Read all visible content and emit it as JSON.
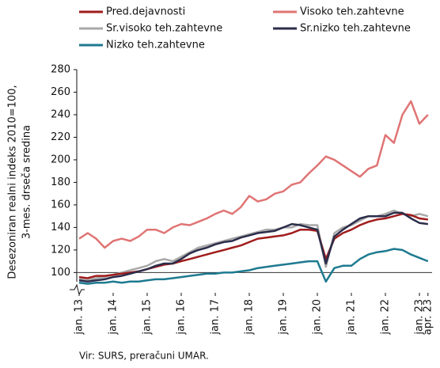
{
  "chart_data": {
    "type": "line",
    "y_label": [
      "Desezoniran realni indeks 2010=100,",
      "3-mes. drseča sredina"
    ],
    "source": "Vir: SURS, preračuni UMAR.",
    "categories": [
      "jan. 13",
      null,
      null,
      null,
      "jan. 14",
      null,
      null,
      null,
      "jan. 15",
      null,
      null,
      null,
      "jan. 16",
      null,
      null,
      null,
      "jan. 17",
      null,
      null,
      null,
      "jan. 18",
      null,
      null,
      null,
      "jan. 19",
      null,
      null,
      null,
      "jan. 20",
      null,
      null,
      null,
      "jan. 21",
      null,
      null,
      null,
      "jan. 22",
      null,
      null,
      null,
      "jan. 23",
      "apr. 23"
    ],
    "series": [
      {
        "name": "Pred.dejavnosti",
        "color": "#a01c1c",
        "values": [
          96,
          95,
          97,
          97,
          98,
          99,
          100,
          101,
          103,
          105,
          107,
          108,
          110,
          112,
          114,
          116,
          118,
          120,
          122,
          124,
          127,
          130,
          131,
          132,
          133,
          135,
          138,
          138,
          137,
          112,
          130,
          135,
          138,
          142,
          145,
          147,
          148,
          150,
          152,
          151,
          148,
          147
        ]
      },
      {
        "name": "Visoko teh.zahtevne",
        "color": "#e07474",
        "values": [
          130,
          135,
          130,
          122,
          128,
          130,
          128,
          132,
          138,
          138,
          135,
          140,
          143,
          142,
          145,
          148,
          152,
          155,
          152,
          158,
          168,
          163,
          165,
          170,
          172,
          178,
          180,
          188,
          195,
          203,
          200,
          195,
          190,
          185,
          192,
          195,
          222,
          215,
          240,
          252,
          232,
          240
        ]
      },
      {
        "name": "Sr.visoko teh.zahtevne",
        "color": "#a8a8a8",
        "values": [
          94,
          93,
          95,
          96,
          98,
          100,
          102,
          104,
          106,
          110,
          112,
          110,
          114,
          118,
          122,
          124,
          126,
          128,
          130,
          132,
          134,
          136,
          138,
          138,
          140,
          140,
          143,
          142,
          142,
          105,
          135,
          140,
          142,
          146,
          150,
          150,
          152,
          155,
          152,
          150,
          152,
          150
        ]
      },
      {
        "name": "Sr.nizko teh.zahtevne",
        "color": "#2b2d4a",
        "values": [
          93,
          92,
          93,
          94,
          96,
          97,
          99,
          101,
          103,
          106,
          108,
          108,
          112,
          117,
          120,
          122,
          125,
          127,
          128,
          131,
          133,
          135,
          136,
          137,
          140,
          143,
          142,
          140,
          138,
          108,
          132,
          138,
          143,
          148,
          150,
          150,
          150,
          153,
          153,
          148,
          144,
          143
        ]
      },
      {
        "name": "Nizko teh.zahtevne",
        "color": "#1e7a90",
        "values": [
          91,
          90,
          91,
          91,
          92,
          91,
          92,
          92,
          93,
          94,
          94,
          95,
          96,
          97,
          98,
          99,
          99,
          100,
          100,
          101,
          102,
          104,
          105,
          106,
          107,
          108,
          109,
          110,
          110,
          92,
          104,
          106,
          106,
          112,
          116,
          118,
          119,
          121,
          120,
          116,
          113,
          110
        ]
      }
    ],
    "ylim": [
      82,
      280
    ],
    "yticks": [
      100,
      120,
      140,
      160,
      180,
      200,
      220,
      240,
      260,
      280
    ]
  }
}
